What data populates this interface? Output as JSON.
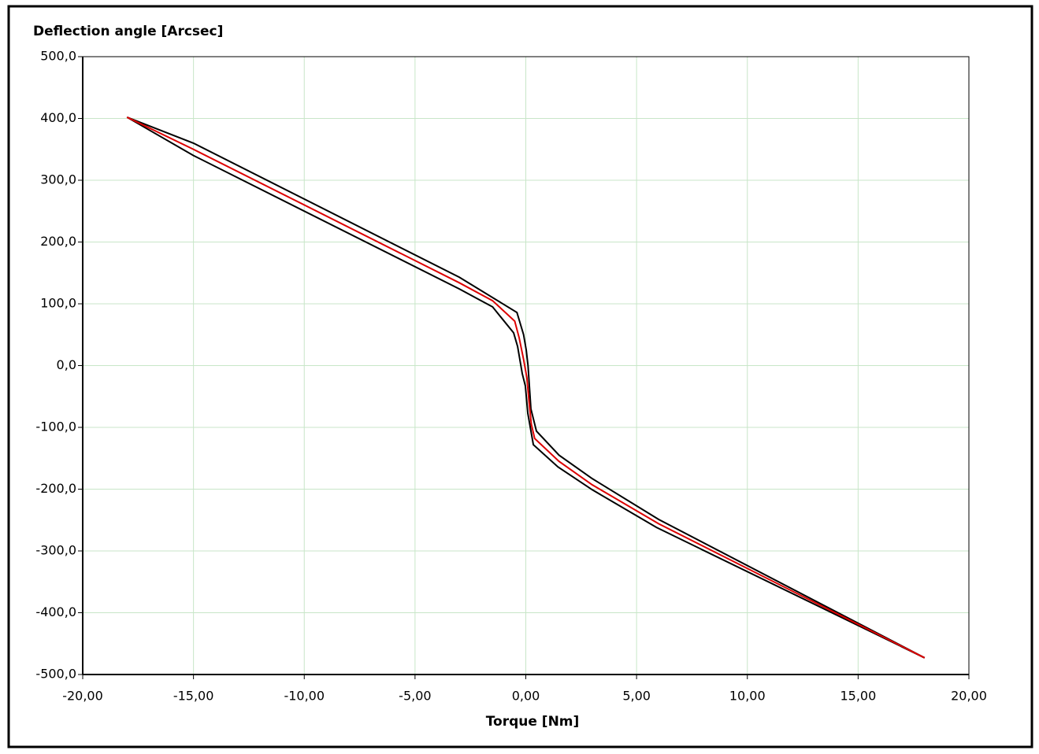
{
  "chart_data": {
    "type": "line",
    "title": "Deflection angle [Arcsec]",
    "x_label": "Torque [Nm]",
    "grid": true,
    "grid_color": "#c8e6c8",
    "xlim": [
      -20,
      20
    ],
    "xticks": [
      {
        "value": -20,
        "label": "-20,00"
      },
      {
        "value": -15,
        "label": "-15,00"
      },
      {
        "value": -10,
        "label": "-10,00"
      },
      {
        "value": -5,
        "label": "-5,00"
      },
      {
        "value": 0,
        "label": "0,00"
      },
      {
        "value": 5,
        "label": "5,00"
      },
      {
        "value": 10,
        "label": "10,00"
      },
      {
        "value": 15,
        "label": "15,00"
      },
      {
        "value": 20,
        "label": "20,00"
      }
    ],
    "ylim": [
      -500,
      500
    ],
    "yticks": [
      {
        "value": -500,
        "label": "-500,0"
      },
      {
        "value": -400,
        "label": "-400,0"
      },
      {
        "value": -300,
        "label": "-300,0"
      },
      {
        "value": -200,
        "label": "-200,0"
      },
      {
        "value": -100,
        "label": "-100,0"
      },
      {
        "value": 0,
        "label": "0,0"
      },
      {
        "value": 100,
        "label": "100,0"
      },
      {
        "value": 200,
        "label": "200,0"
      },
      {
        "value": 300,
        "label": "300,0"
      },
      {
        "value": 400,
        "label": "400,0"
      },
      {
        "value": 500,
        "label": "500,0"
      }
    ],
    "series": [
      {
        "color": "#000000",
        "x": [
          -18,
          -15,
          -3,
          -0.4,
          -0.1,
          0.02,
          0.1,
          0.23,
          0.48,
          1.5,
          3,
          6,
          18
        ],
        "values": [
          402,
          360,
          143,
          86,
          50,
          25,
          0,
          -70,
          -106,
          -145,
          -183,
          -249,
          -473
        ]
      },
      {
        "color": "#000000",
        "x": [
          -18,
          -15,
          -3,
          -1.5,
          -0.55,
          -0.37,
          -0.16,
          -0.02,
          0.09,
          0.34,
          1.45,
          3,
          5.9,
          18
        ],
        "values": [
          402,
          340,
          124,
          95,
          53,
          31,
          -13,
          -33,
          -77,
          -128,
          -164,
          -201,
          -262,
          -473
        ]
      },
      {
        "color": "#dd0000",
        "x": [
          -18,
          -15,
          -3,
          -1.5,
          -0.5,
          -0.3,
          -0.1,
          0.05,
          0.15,
          0.25,
          0.4,
          1.5,
          3,
          6,
          18
        ],
        "values": [
          402,
          350,
          134,
          105,
          72,
          45,
          10,
          -20,
          -60,
          -95,
          -118,
          -155,
          -193,
          -256,
          -473
        ]
      }
    ]
  }
}
